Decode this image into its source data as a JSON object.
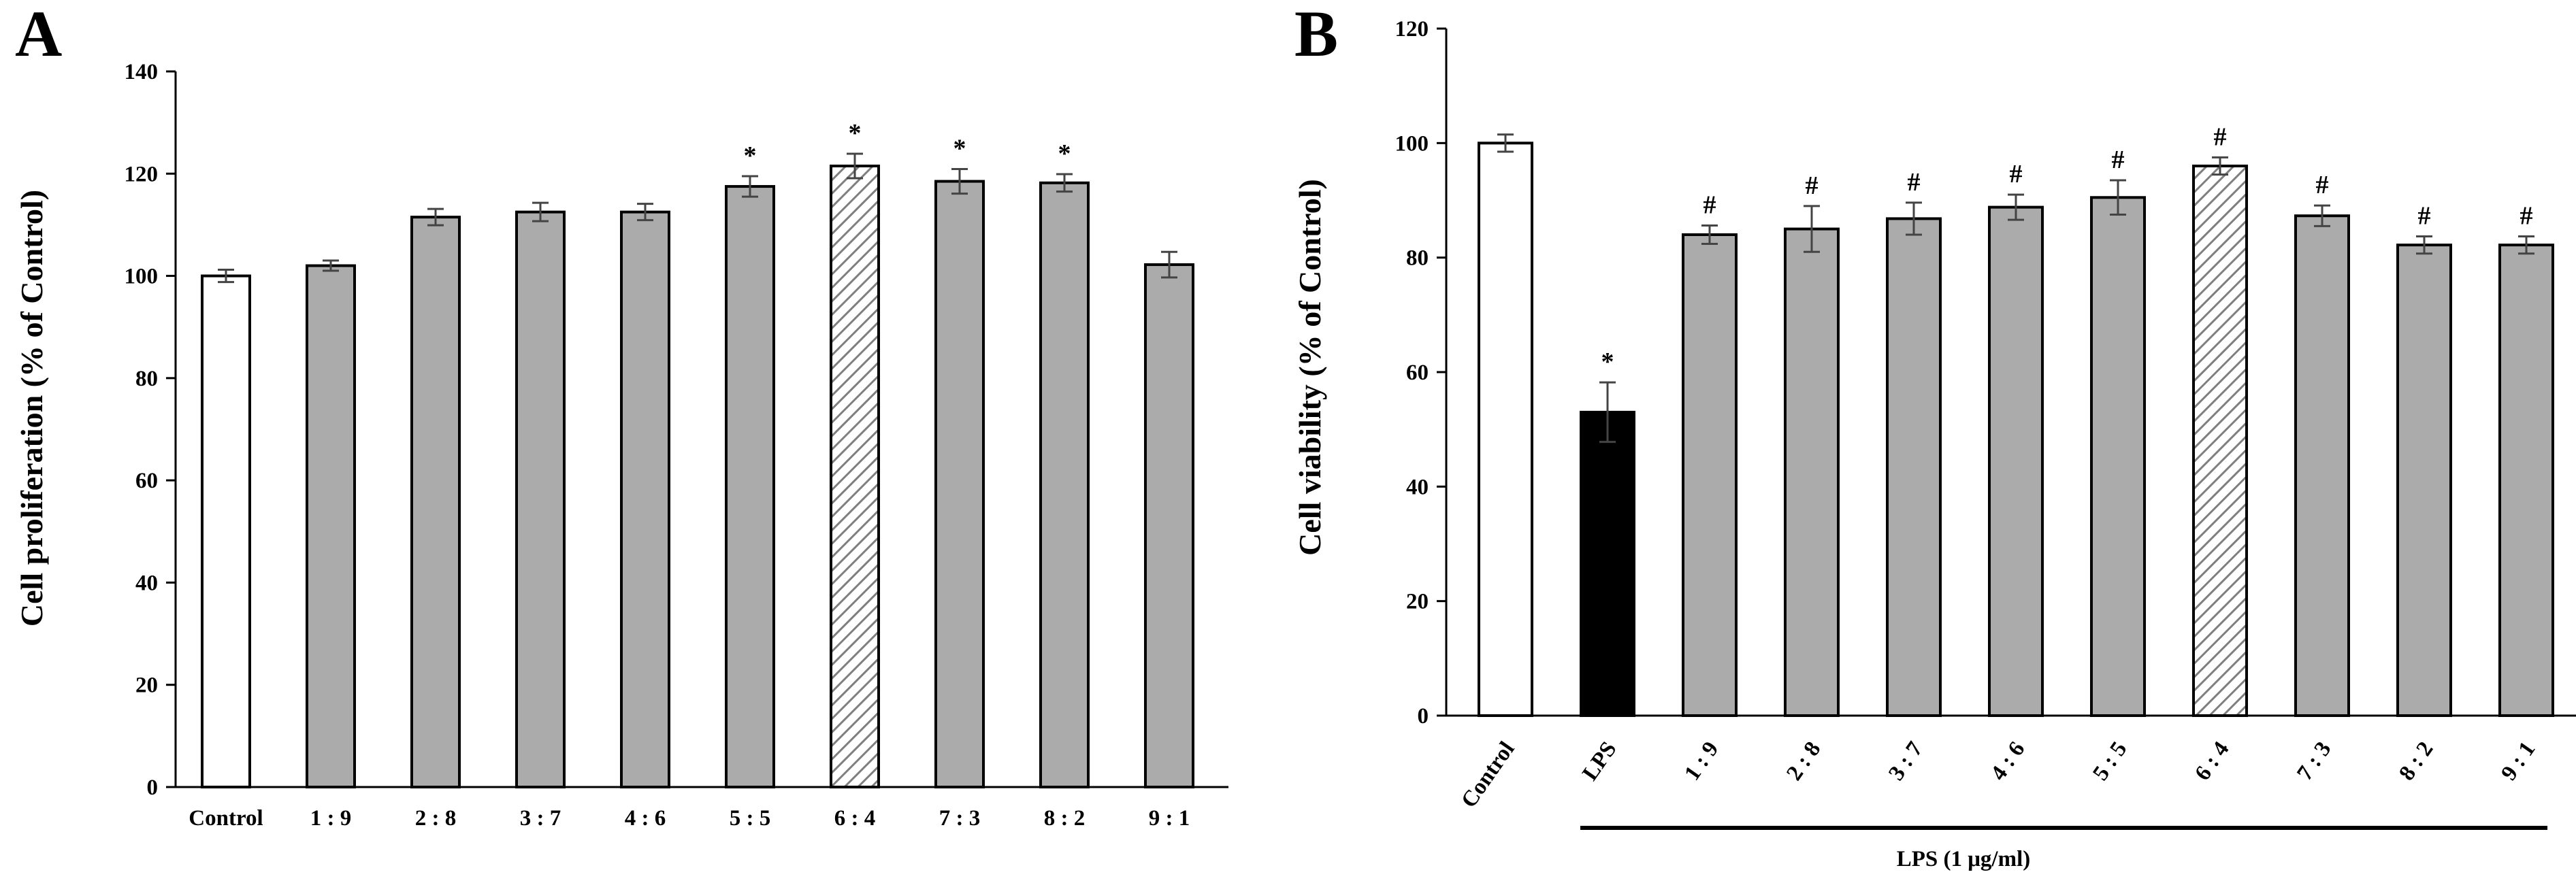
{
  "colors": {
    "control_fill": "#ffffff",
    "treatment_fill": "#ababab",
    "optimal_fill_stripe": "#7f7f7f",
    "lps_fill": "#000000",
    "axis": "#000000"
  },
  "chart_data": [
    {
      "panel": "A",
      "type": "bar",
      "ylabel": "Cell proliferation (% of Control)",
      "xlabel": "",
      "ylim": [
        0,
        140
      ],
      "yticks": [
        0,
        20,
        40,
        60,
        80,
        100,
        120,
        140
      ],
      "categories": [
        "Control",
        "1 : 9",
        "2 : 8",
        "3 : 7",
        "4 : 6",
        "5 : 5",
        "6 : 4",
        "7 : 3",
        "8 : 2",
        "9 : 1"
      ],
      "values": [
        100,
        102,
        111.5,
        112.5,
        112.5,
        117.5,
        121.5,
        118.5,
        118.2,
        102.2
      ],
      "errors": [
        1.2,
        1.0,
        1.6,
        1.8,
        1.6,
        2.0,
        2.4,
        2.4,
        1.7,
        2.5
      ],
      "styles": [
        "control",
        "treatment",
        "treatment",
        "treatment",
        "treatment",
        "treatment",
        "striped",
        "treatment",
        "treatment",
        "treatment"
      ],
      "significance": [
        "",
        "",
        "",
        "",
        "",
        "*",
        "*",
        "*",
        "*",
        ""
      ]
    },
    {
      "panel": "B",
      "type": "bar",
      "ylabel": "Cell viability (% of Control)",
      "xlabel": "",
      "ylim": [
        0,
        120
      ],
      "yticks": [
        0,
        20,
        40,
        60,
        80,
        100,
        120
      ],
      "categories": [
        "Control",
        "LPS",
        "1 : 9",
        "2 : 8",
        "3 : 7",
        "4 : 6",
        "5 : 5",
        "6 : 4",
        "7 : 3",
        "8 : 2",
        "9 : 1"
      ],
      "values": [
        100,
        53,
        84,
        85,
        86.8,
        88.8,
        90.5,
        96,
        87.3,
        82.2,
        82.2
      ],
      "errors": [
        1.5,
        5.2,
        1.6,
        4.0,
        2.8,
        2.2,
        3.0,
        1.5,
        1.8,
        1.5,
        1.5
      ],
      "styles": [
        "control",
        "lps",
        "treatment",
        "treatment",
        "treatment",
        "treatment",
        "treatment",
        "striped",
        "treatment",
        "treatment",
        "treatment"
      ],
      "significance": [
        "",
        "*",
        "#",
        "#",
        "#",
        "#",
        "#",
        "#",
        "#",
        "#",
        "#"
      ],
      "group_label": "LPS (1 μg/ml)"
    }
  ]
}
